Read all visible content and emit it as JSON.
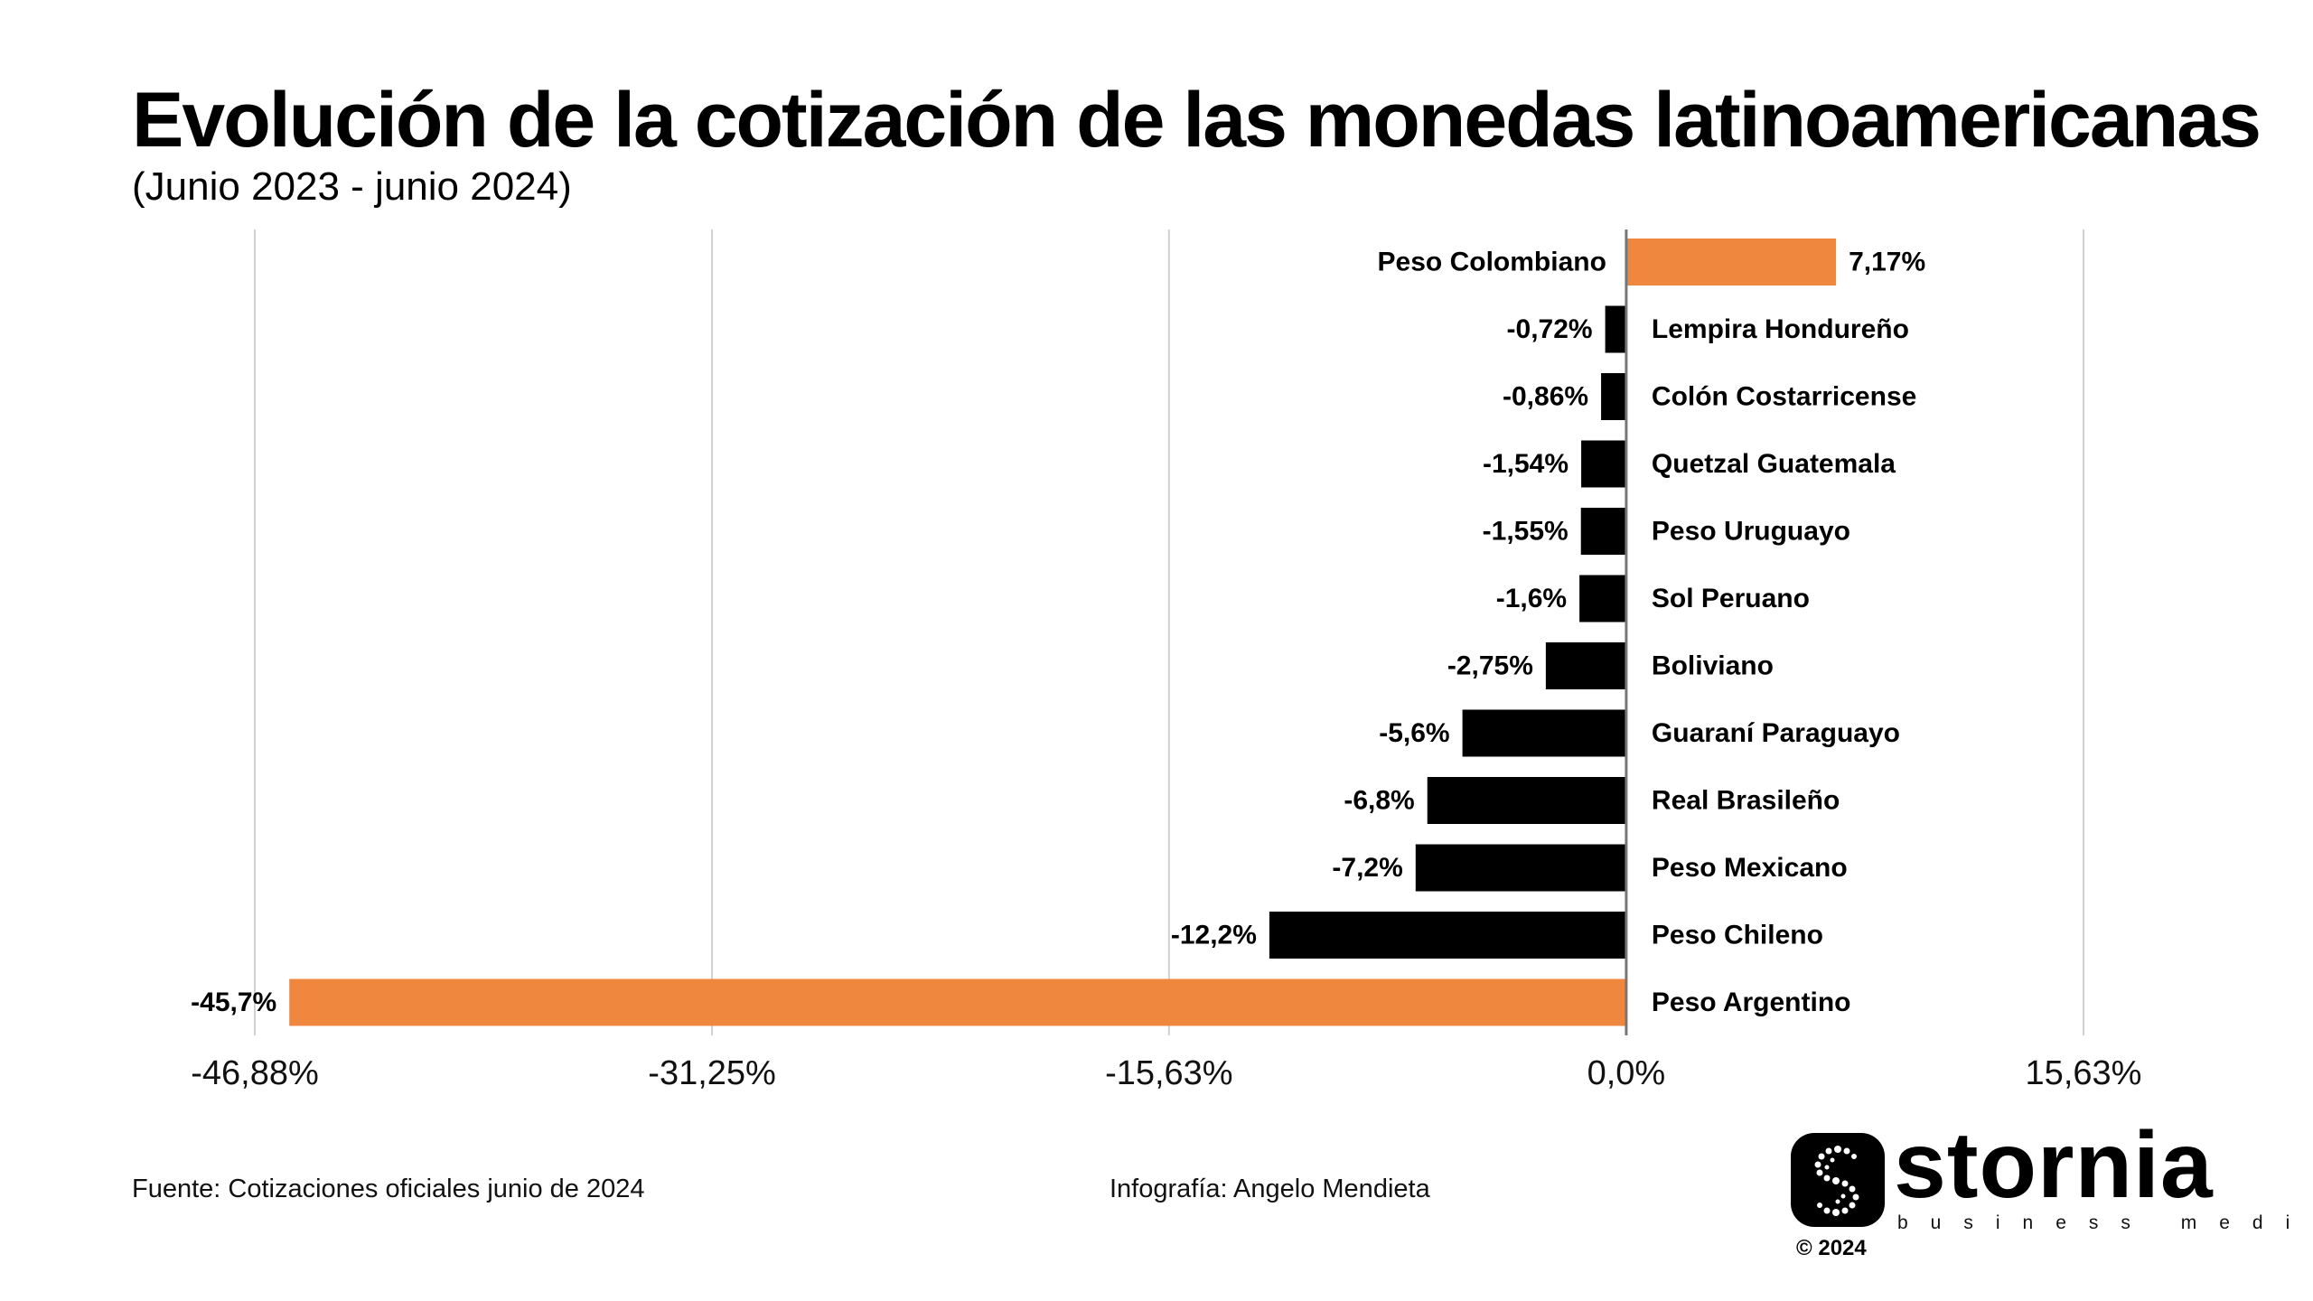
{
  "header": {
    "title": "Evolución de la cotización de las monedas latinoamericanas",
    "subtitle": "(Junio 2023 - junio 2024)"
  },
  "chart_data": {
    "type": "bar",
    "orientation": "horizontal",
    "title": "Evolución de la cotización de las monedas latinoamericanas",
    "subtitle": "(Junio 2023 - junio 2024)",
    "categories": [
      "Peso Colombiano",
      "Lempira Hondureño",
      "Colón Costarricense",
      "Quetzal Guatemala",
      "Peso Uruguayo",
      "Sol Peruano",
      "Boliviano",
      "Guaraní Paraguayo",
      "Real Brasileño",
      "Peso Mexicano",
      "Peso Chileno",
      "Peso Argentino"
    ],
    "values": [
      7.17,
      -0.72,
      -0.86,
      -1.54,
      -1.55,
      -1.6,
      -2.75,
      -5.6,
      -6.8,
      -7.2,
      -12.2,
      -45.7
    ],
    "value_labels": [
      "7,17%",
      "-0,72%",
      "-0,86%",
      "-1,54%",
      "-1,55%",
      "-1,6%",
      "-2,75%",
      "-5,6%",
      "-6,8%",
      "-7,2%",
      "-12,2%",
      "-45,7%"
    ],
    "highlighted": [
      "Peso Colombiano",
      "Peso Argentino"
    ],
    "xlim": [
      -46.88,
      15.63
    ],
    "x_ticks": [
      -46.88,
      -31.25,
      -15.63,
      0,
      15.63
    ],
    "x_tick_labels": [
      "-46,88%",
      "-31,25%",
      "-15,63%",
      "0,0%",
      "15,63%"
    ],
    "xlabel": "",
    "ylabel": "",
    "grid": true,
    "colors": {
      "highlight": "#F0873E",
      "default": "#000000",
      "grid": "#d0d0d0",
      "axis": "#777777"
    }
  },
  "footer": {
    "source": "Fuente: Cotizaciones oficiales junio de 2024",
    "credit": "Infografía: Angelo Mendieta"
  },
  "brand": {
    "name": "stornia",
    "tagline": "business media",
    "copyright": "© 2024",
    "icon": "stornia-s-logo-icon"
  }
}
